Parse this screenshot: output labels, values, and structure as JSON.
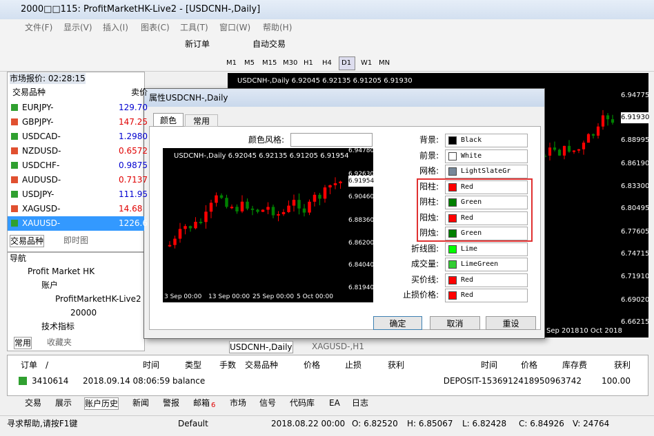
{
  "window": {
    "title": "2000□□115: ProfitMarketHK-Live2 - [USDCNH-,Daily]"
  },
  "menu": [
    "文件(F)",
    "显示(V)",
    "插入(I)",
    "图表(C)",
    "工具(T)",
    "窗口(W)",
    "帮助(H)"
  ],
  "toolbar": [
    "新订单",
    "自动交易"
  ],
  "timeframes": [
    "M1",
    "M5",
    "M15",
    "M30",
    "H1",
    "H4",
    "D1",
    "W1",
    "MN"
  ],
  "market_watch": {
    "title": "市场报价: 02:28:15",
    "headers": [
      "交易品种",
      "卖价"
    ],
    "rows": [
      [
        "EURJPY-",
        "129.70"
      ],
      [
        "GBPJPY-",
        "147.25"
      ],
      [
        "USDCAD-",
        "1.2980"
      ],
      [
        "NZDUSD-",
        "0.6572"
      ],
      [
        "USDCHF-",
        "0.9875"
      ],
      [
        "AUDUSD-",
        "0.7137"
      ],
      [
        "USDJPY-",
        "111.95"
      ],
      [
        "XAGUSD-",
        "14.68"
      ],
      [
        "XAUUSD-",
        "1226.6"
      ]
    ],
    "tabs": [
      "交易品种",
      "即时图"
    ]
  },
  "navigator": {
    "title": "导航",
    "items": [
      "Profit Market HK",
      "账户",
      "ProfitMarketHK-Live2",
      "20000",
      "技术指标"
    ],
    "tabs": [
      "常用",
      "收藏夹"
    ]
  },
  "chart": {
    "header": "USDCNH-,Daily  6.92045 6.92135 6.91205 6.91930",
    "price_labels": [
      "6.94775",
      "6.91930",
      "6.88995",
      "6.86190",
      "6.83300",
      "6.80495",
      "6.77605",
      "6.74715",
      "6.71910",
      "6.69020",
      "6.66215"
    ],
    "dates": [
      "Sep 2018",
      "10 Oct 2018"
    ],
    "tabs": [
      "USDCNH-,Daily",
      "XAGUSD-,H1"
    ]
  },
  "dialog": {
    "title": "属性USDCNH-,Daily",
    "tabs": [
      "颜色",
      "常用"
    ],
    "scheme_label": "颜色风格:",
    "preview": {
      "header": "USDCNH-,Daily  6.92045 6.92135 6.91205 6.91954",
      "prices": [
        "6.94780",
        "6.92630",
        "6.91954",
        "6.90460",
        "6.88360",
        "6.86200",
        "6.84040",
        "6.81940"
      ],
      "dates": [
        "3 Sep 00:00",
        "13 Sep 00:00",
        "25 Sep 00:00",
        "5 Oct 00:00"
      ]
    },
    "settings": [
      {
        "label": "背景:",
        "value": "Black",
        "color": "#000000"
      },
      {
        "label": "前景:",
        "value": "White",
        "color": "#ffffff"
      },
      {
        "label": "网格:",
        "value": "LightSlateGr",
        "color": "#778899"
      },
      {
        "label": "阳柱:",
        "value": "Red",
        "color": "#ff0000"
      },
      {
        "label": "阴柱:",
        "value": "Green",
        "color": "#008000"
      },
      {
        "label": "阳烛:",
        "value": "Red",
        "color": "#ff0000"
      },
      {
        "label": "阴烛:",
        "value": "Green",
        "color": "#008000"
      },
      {
        "label": "折线图:",
        "value": "Lime",
        "color": "#00ff00"
      },
      {
        "label": "成交量:",
        "value": "LimeGreen",
        "color": "#32cd32"
      },
      {
        "label": "买价线:",
        "value": "Red",
        "color": "#ff0000"
      },
      {
        "label": "止损价格:",
        "value": "Red",
        "color": "#ff0000"
      }
    ],
    "buttons": [
      "确定",
      "取消",
      "重设"
    ]
  },
  "terminal": {
    "headers": [
      "订单",
      "/",
      "时间",
      "类型",
      "手数",
      "交易品种",
      "价格",
      "止损",
      "获利",
      "时间",
      "价格",
      "库存费",
      "获利"
    ],
    "row": [
      "3410614",
      "2018.09.14 08:06:59",
      "balance",
      "DEPOSIT-1536912418950963742",
      "100.00"
    ],
    "tabs": [
      "交易",
      "展示",
      "账户历史",
      "新闻",
      "警报",
      "邮箱",
      "市场",
      "信号",
      "代码库",
      "EA",
      "日志"
    ],
    "mail_count": "6"
  },
  "status": [
    "寻求帮助,请按F1键",
    "Default",
    "2018.08.22 00:00",
    "O: 6.82520",
    "H: 6.85067",
    "L: 6.82428",
    "C: 6.84926",
    "V: 24764"
  ]
}
